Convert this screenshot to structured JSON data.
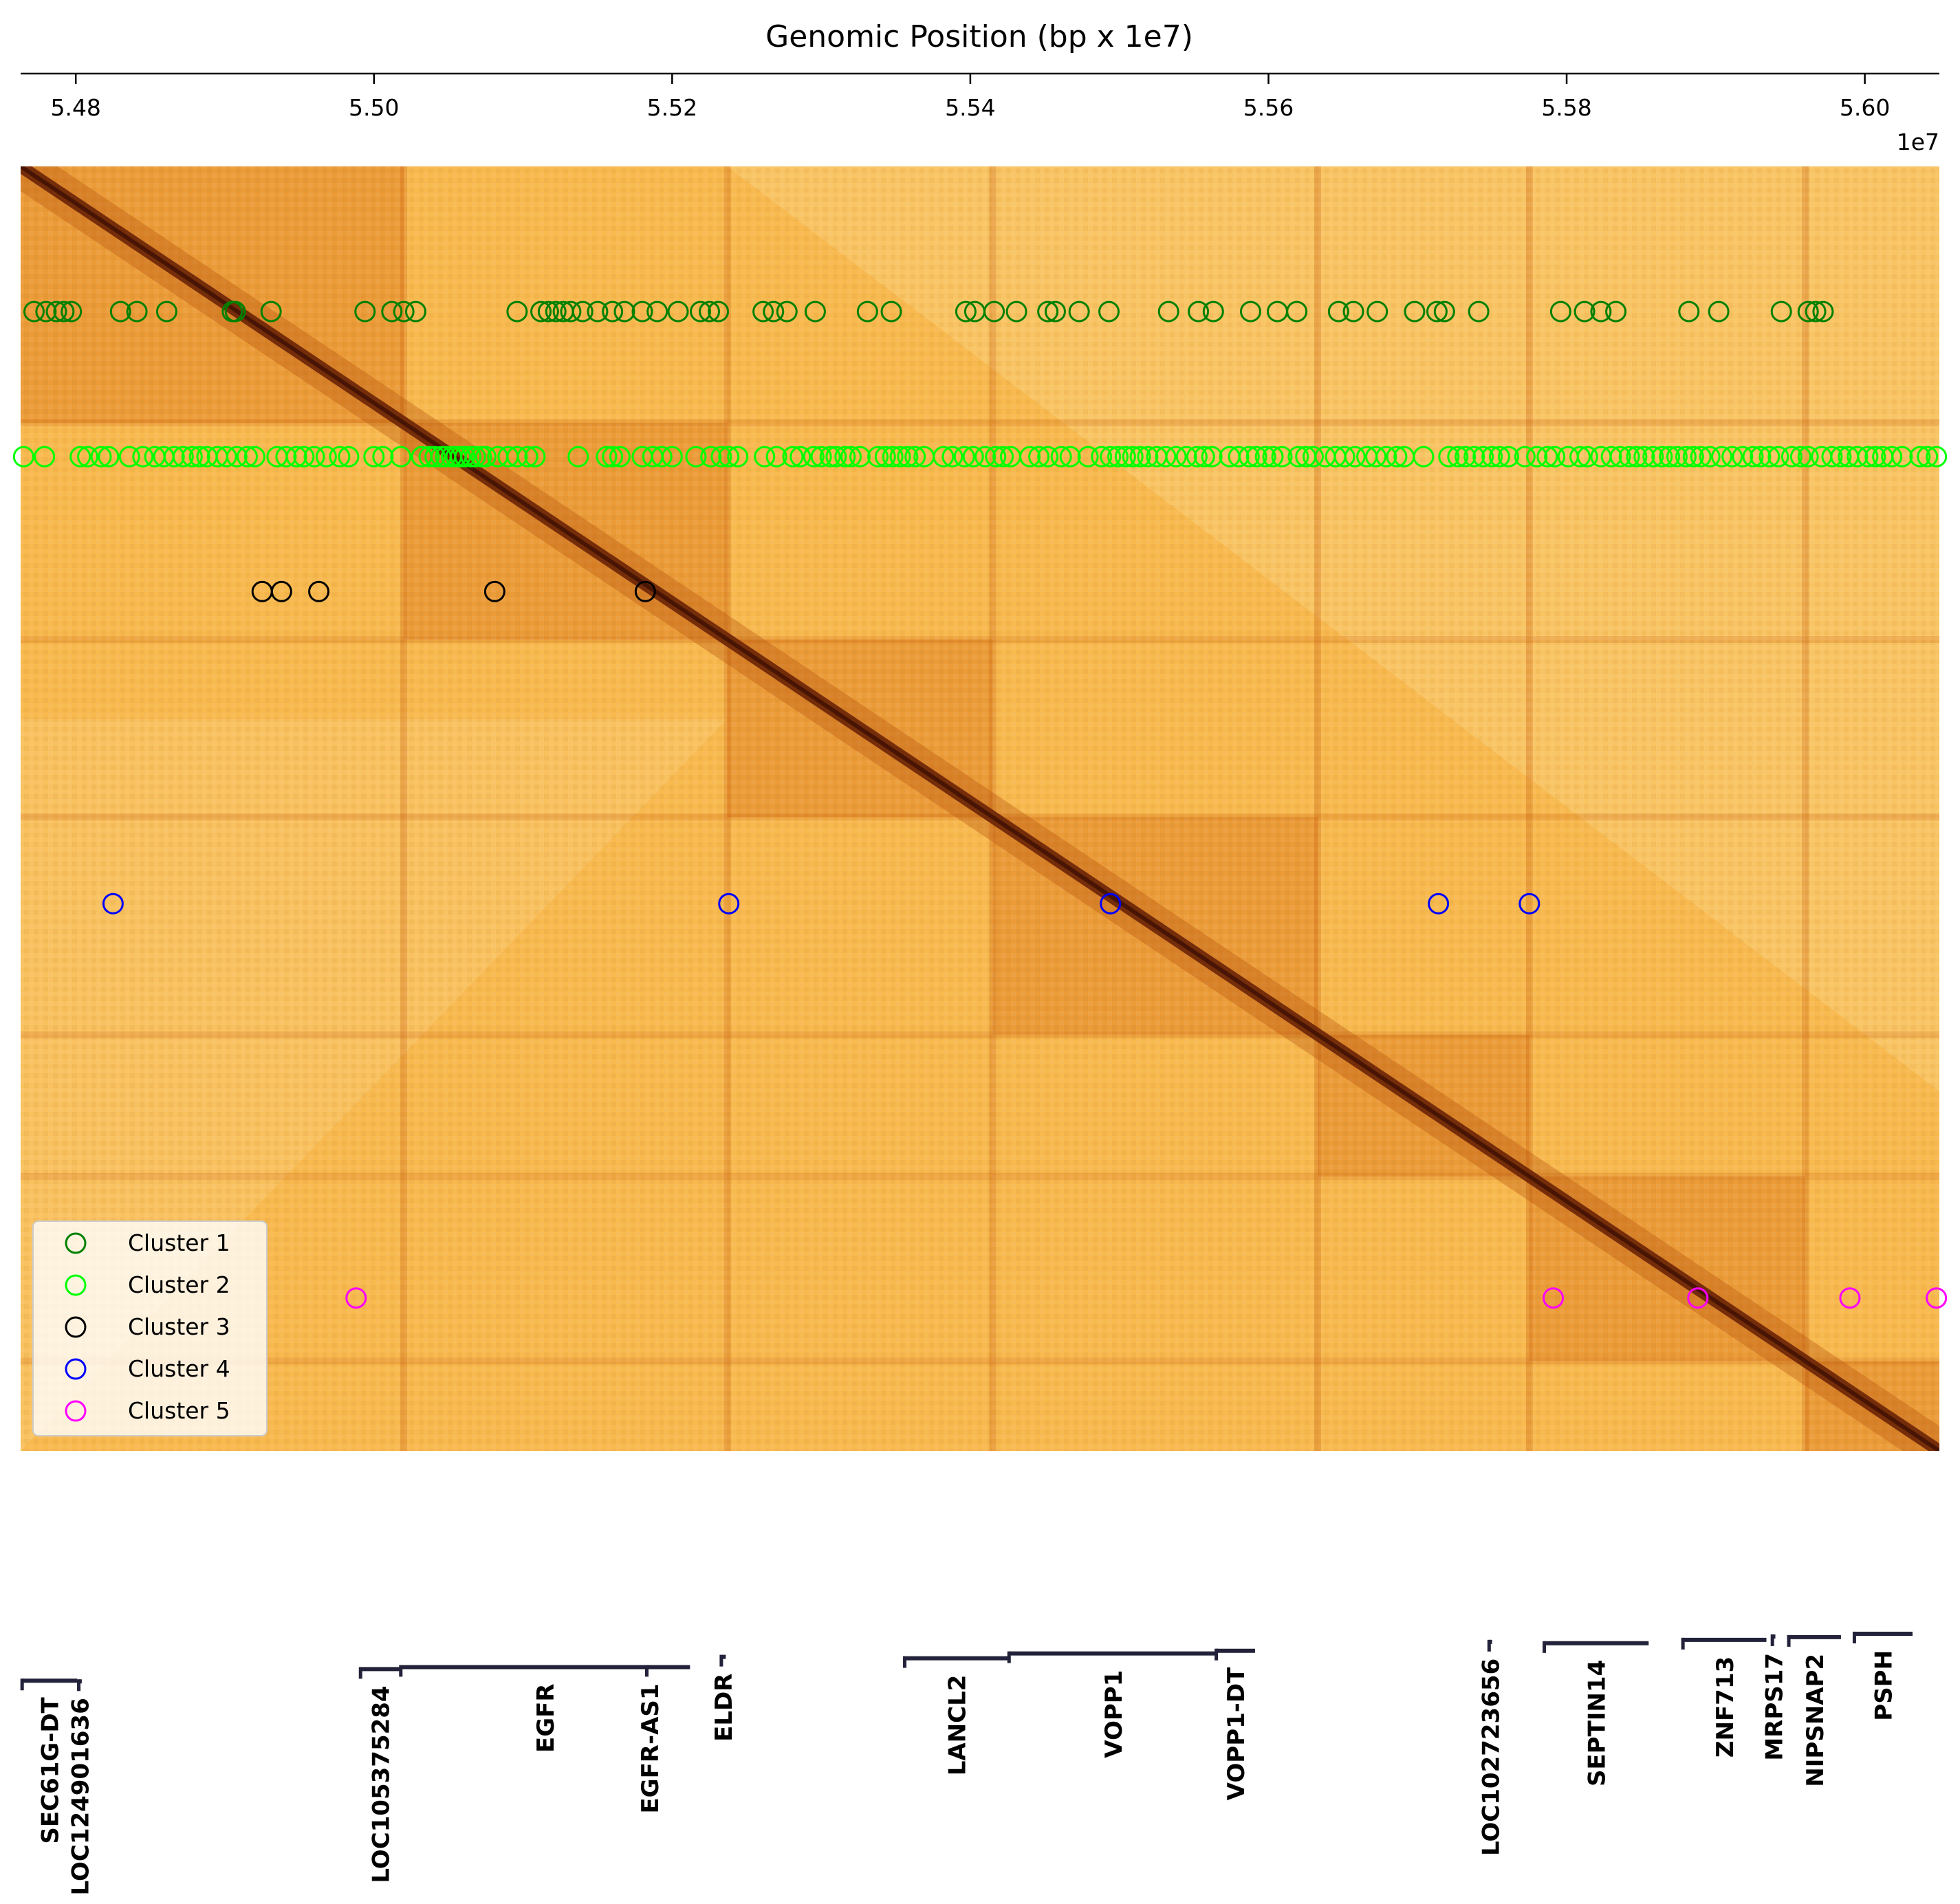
{
  "chart_data": {
    "type": "heatmap",
    "title": "Genomic Position (bp x 1e7)",
    "x_axis": {
      "position": "top",
      "range": [
        54763000,
        56050000
      ],
      "ticks": [
        54800000,
        55000000,
        55200000,
        55400000,
        55600000,
        55800000,
        56000000
      ],
      "tick_labels": [
        "5.48",
        "5.50",
        "5.52",
        "5.54",
        "5.56",
        "5.58",
        "5.60"
      ],
      "offset_label": "1e7"
    },
    "heatmap": {
      "description_colormap": "YlOrBr (Hi-C contact matrix)",
      "domain_boundaries": [
        55020000,
        55237000,
        55415000,
        55633000,
        55775000,
        55960000
      ]
    },
    "scatter_rows": {
      "Cluster 1": 0.113,
      "Cluster 2": 0.226,
      "Cluster 3": 0.331,
      "Cluster 4": 0.574,
      "Cluster 5": 0.881
    },
    "series": [
      {
        "name": "Cluster 1",
        "color": "#008000",
        "x": [
          54772000,
          54780000,
          54787000,
          54792000,
          54797000,
          54830000,
          54841000,
          54861000,
          54905000,
          54907000,
          54931000,
          54994000,
          55012000,
          55020000,
          55028000,
          55096000,
          55112000,
          55117000,
          55122000,
          55127000,
          55132000,
          55140000,
          55150000,
          55160000,
          55168000,
          55180000,
          55190000,
          55204000,
          55219000,
          55225000,
          55231000,
          55261000,
          55268000,
          55277000,
          55296000,
          55331000,
          55347000,
          55397000,
          55403000,
          55416000,
          55431000,
          55452000,
          55457000,
          55473000,
          55493000,
          55533000,
          55553000,
          55563000,
          55588000,
          55606000,
          55619000,
          55647000,
          55657000,
          55673000,
          55698000,
          55713000,
          55718000,
          55741000,
          55796000,
          55812000,
          55823000,
          55833000,
          55882000,
          55902000,
          55944000,
          55962000,
          55967000,
          55972000
        ]
      },
      {
        "name": "Cluster 2",
        "color": "#00ff00",
        "x": [
          54765000,
          54779000,
          54803000,
          54808000,
          54817000,
          54822000,
          54836000,
          54845000,
          54853000,
          54859000,
          54866000,
          54872000,
          54878000,
          54883000,
          54888000,
          54895000,
          54901000,
          54908000,
          54915000,
          54920000,
          54935000,
          54941000,
          54948000,
          54953000,
          54960000,
          54968000,
          54977000,
          54983000,
          55000000,
          55006000,
          55018000,
          55032000,
          55037000,
          55041000,
          55045000,
          55048000,
          55052000,
          55055000,
          55058000,
          55061000,
          55065000,
          55068000,
          55072000,
          55075000,
          55083000,
          55090000,
          55096000,
          55103000,
          55108000,
          55137000,
          55156000,
          55160000,
          55165000,
          55180000,
          55187000,
          55193000,
          55200000,
          55216000,
          55226000,
          55233000,
          55238000,
          55244000,
          55262000,
          55270000,
          55281000,
          55286000,
          55295000,
          55300000,
          55306000,
          55310000,
          55316000,
          55320000,
          55326000,
          55338000,
          55343000,
          55348000,
          55353000,
          55358000,
          55363000,
          55369000,
          55382000,
          55388000,
          55396000,
          55402000,
          55410000,
          55417000,
          55422000,
          55427000,
          55440000,
          55446000,
          55452000,
          55461000,
          55467000,
          55479000,
          55488000,
          55494000,
          55499000,
          55504000,
          55509000,
          55514000,
          55519000,
          55525000,
          55531000,
          55538000,
          55545000,
          55552000,
          55557000,
          55562000,
          55574000,
          55580000,
          55587000,
          55592000,
          55598000,
          55603000,
          55609000,
          55620000,
          55625000,
          55630000,
          55638000,
          55645000,
          55651000,
          55658000,
          55666000,
          55672000,
          55679000,
          55686000,
          55691000,
          55704000,
          55721000,
          55727000,
          55732000,
          55738000,
          55744000,
          55750000,
          55755000,
          55761000,
          55772000,
          55780000,
          55787000,
          55792000,
          55801000,
          55809000,
          55814000,
          55823000,
          55830000,
          55836000,
          55842000,
          55847000,
          55852000,
          55858000,
          55864000,
          55869000,
          55874000,
          55880000,
          55885000,
          55890000,
          55896000,
          55904000,
          55911000,
          55918000,
          55925000,
          55930000,
          55936000,
          55942000,
          55951000,
          55957000,
          55962000,
          55971000,
          55978000,
          55984000,
          55989000,
          55995000,
          56002000,
          56007000,
          56012000,
          56018000,
          56025000,
          56037000,
          56042000,
          56048000
        ]
      },
      {
        "name": "Cluster 3",
        "color": "#000000",
        "x": [
          54925000,
          54938000,
          54963000,
          55081000,
          55182000
        ]
      },
      {
        "name": "Cluster 4",
        "color": "#0000ff",
        "x": [
          54825000,
          55238000,
          55494000,
          55714000,
          55775000
        ]
      },
      {
        "name": "Cluster 5",
        "color": "#ff00ff",
        "x": [
          54988000,
          55791000,
          55888000,
          55990000,
          56048000
        ]
      }
    ],
    "legend": {
      "placement": "lower-left",
      "entries": [
        "Cluster 1",
        "Cluster 2",
        "Cluster 3",
        "Cluster 4",
        "Cluster 5"
      ]
    },
    "genes": [
      {
        "name": "SEC61G-DT",
        "start": 54764000,
        "end": 54801000,
        "row": 0.375
      },
      {
        "name": "LOC124901636",
        "start": 54802000,
        "end": 54804000,
        "row": 0.38
      },
      {
        "name": "LOC105375284",
        "start": 54991000,
        "end": 55018000,
        "row": 0.29
      },
      {
        "name": "EGFR",
        "start": 55018000,
        "end": 55212000,
        "row": 0.275
      },
      {
        "name": "EGFR-AS1",
        "start": 55183000,
        "end": 55187000,
        "row": 0.275
      },
      {
        "name": "ELDR",
        "start": 55233000,
        "end": 55236000,
        "row": 0.2
      },
      {
        "name": "LANCL2",
        "start": 55356000,
        "end": 55426000,
        "row": 0.21
      },
      {
        "name": "VOPP1",
        "start": 55426000,
        "end": 55566000,
        "row": 0.175
      },
      {
        "name": "VOPP1-DT",
        "start": 55565000,
        "end": 55591000,
        "row": 0.155
      },
      {
        "name": "LOC102723656",
        "start": 55748000,
        "end": 55750000,
        "row": 0.09
      },
      {
        "name": "SEPTIN14",
        "start": 55785000,
        "end": 55855000,
        "row": 0.1
      },
      {
        "name": "ZNF713",
        "start": 55878000,
        "end": 55934000,
        "row": 0.075
      },
      {
        "name": "MRPS17",
        "start": 55938000,
        "end": 55940000,
        "row": 0.05
      },
      {
        "name": "NIPSNAP2",
        "start": 55949000,
        "end": 55984000,
        "row": 0.055
      },
      {
        "name": "PSPH",
        "start": 55993000,
        "end": 56032000,
        "row": 0.03
      }
    ]
  }
}
